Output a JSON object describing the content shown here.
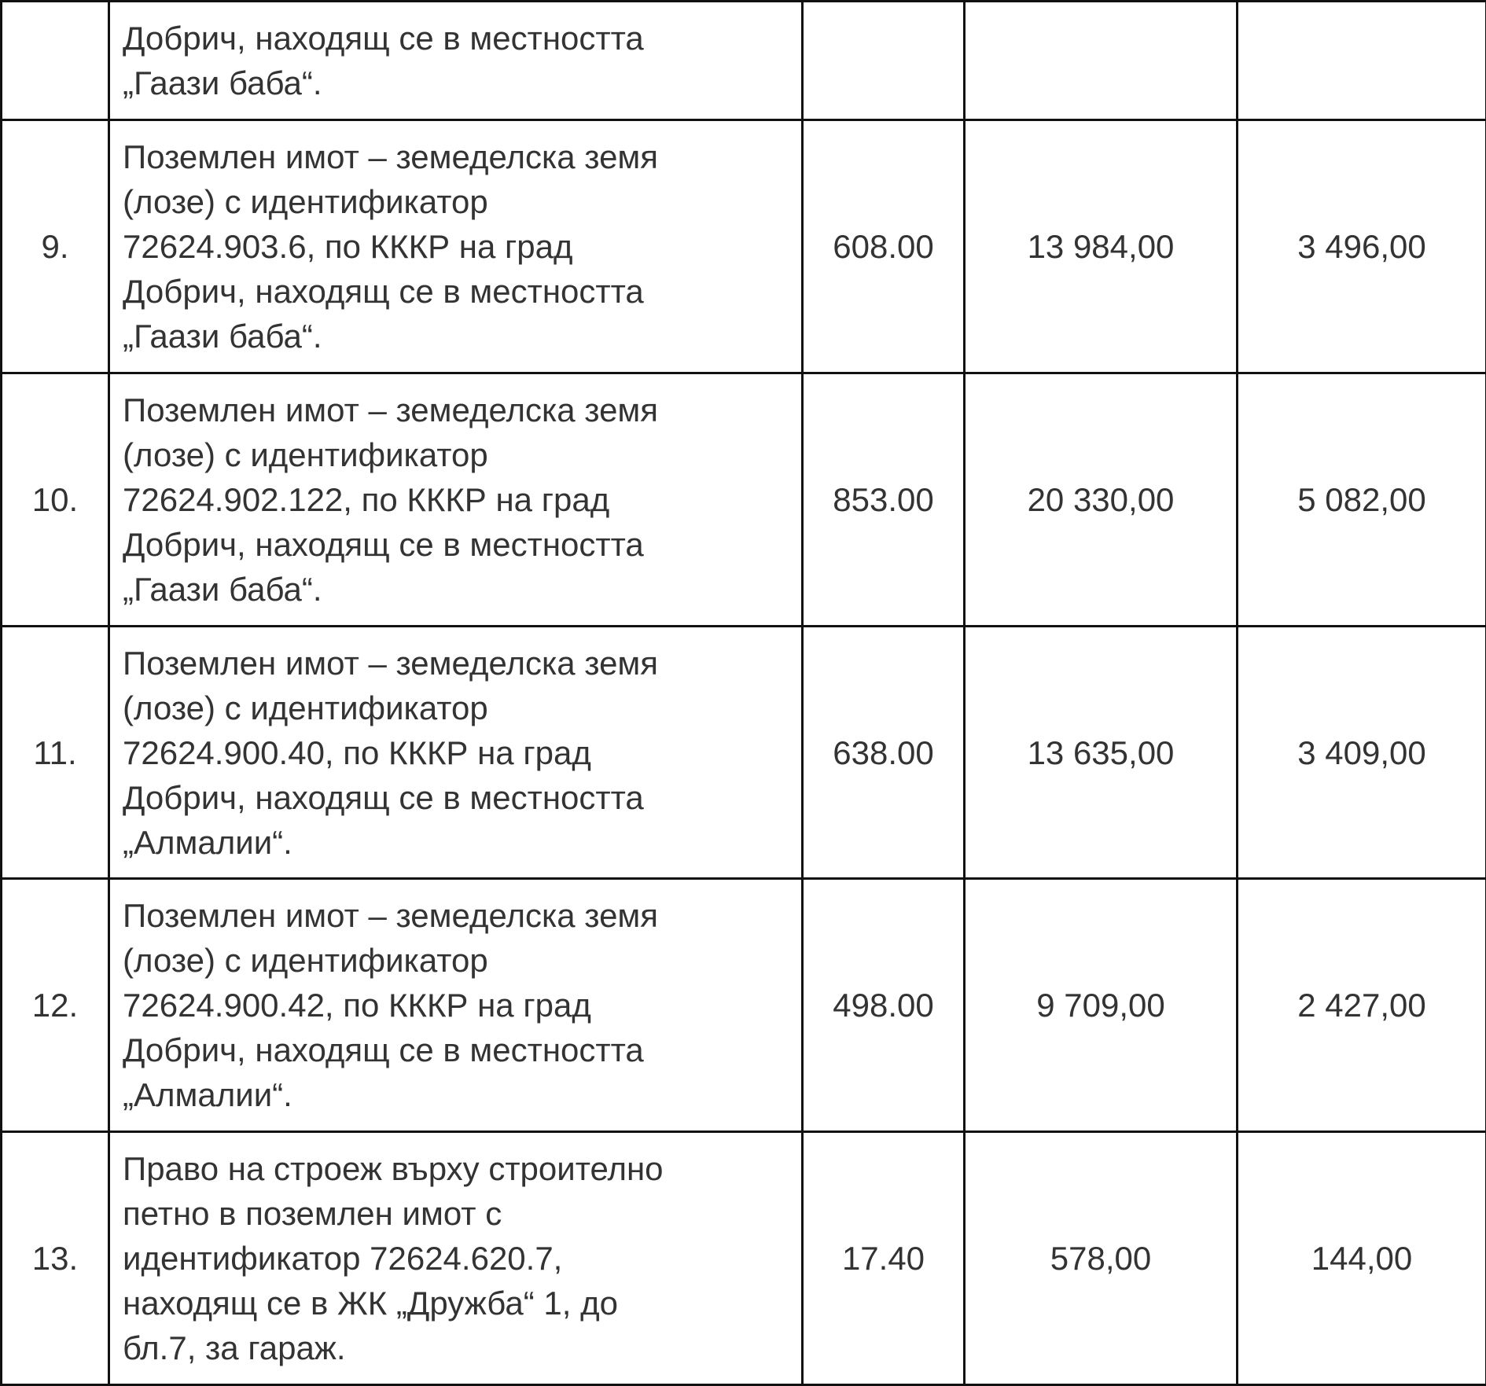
{
  "rows": [
    {
      "no": "",
      "description": [
        "Добрич, находящ се в местността",
        "„Гаази баба“."
      ],
      "area": "",
      "market_value": "",
      "price": ""
    },
    {
      "no": "9.",
      "description": [
        "Поземлен имот – земеделска земя",
        "(лозе) с идентификатор",
        "72624.903.6, по КККР на град",
        "Добрич, находящ се в местността",
        "„Гаази баба“."
      ],
      "area": "608.00",
      "market_value": "13 984,00",
      "price": "3 496,00"
    },
    {
      "no": "10.",
      "description": [
        "Поземлен имот – земеделска земя",
        "(лозе) с идентификатор",
        "72624.902.122, по КККР на град",
        "Добрич, находящ се в местността",
        "„Гаази баба“."
      ],
      "area": "853.00",
      "market_value": "20 330,00",
      "price": "5 082,00"
    },
    {
      "no": "11.",
      "description": [
        "Поземлен имот – земеделска земя",
        "(лозе) с идентификатор",
        "72624.900.40, по КККР на град",
        "Добрич, находящ се в местността",
        "„Алмалии“."
      ],
      "area": "638.00",
      "market_value": "13 635,00",
      "price": "3 409,00"
    },
    {
      "no": "12.",
      "description": [
        "Поземлен имот – земеделска земя",
        "(лозе) с идентификатор",
        "72624.900.42, по КККР на град",
        "Добрич, находящ се в местността",
        "„Алмалии“."
      ],
      "area": "498.00",
      "market_value": "9 709,00",
      "price": "2 427,00"
    },
    {
      "no": "13.",
      "description": [
        "Право на строеж върху строително",
        "петно в поземлен имот с",
        "идентификатор 72624.620.7,",
        "находящ се в ЖК „Дружба“ 1, до",
        "бл.7, за гараж."
      ],
      "area": "17.40",
      "market_value": "578,00",
      "price": "144,00"
    }
  ]
}
